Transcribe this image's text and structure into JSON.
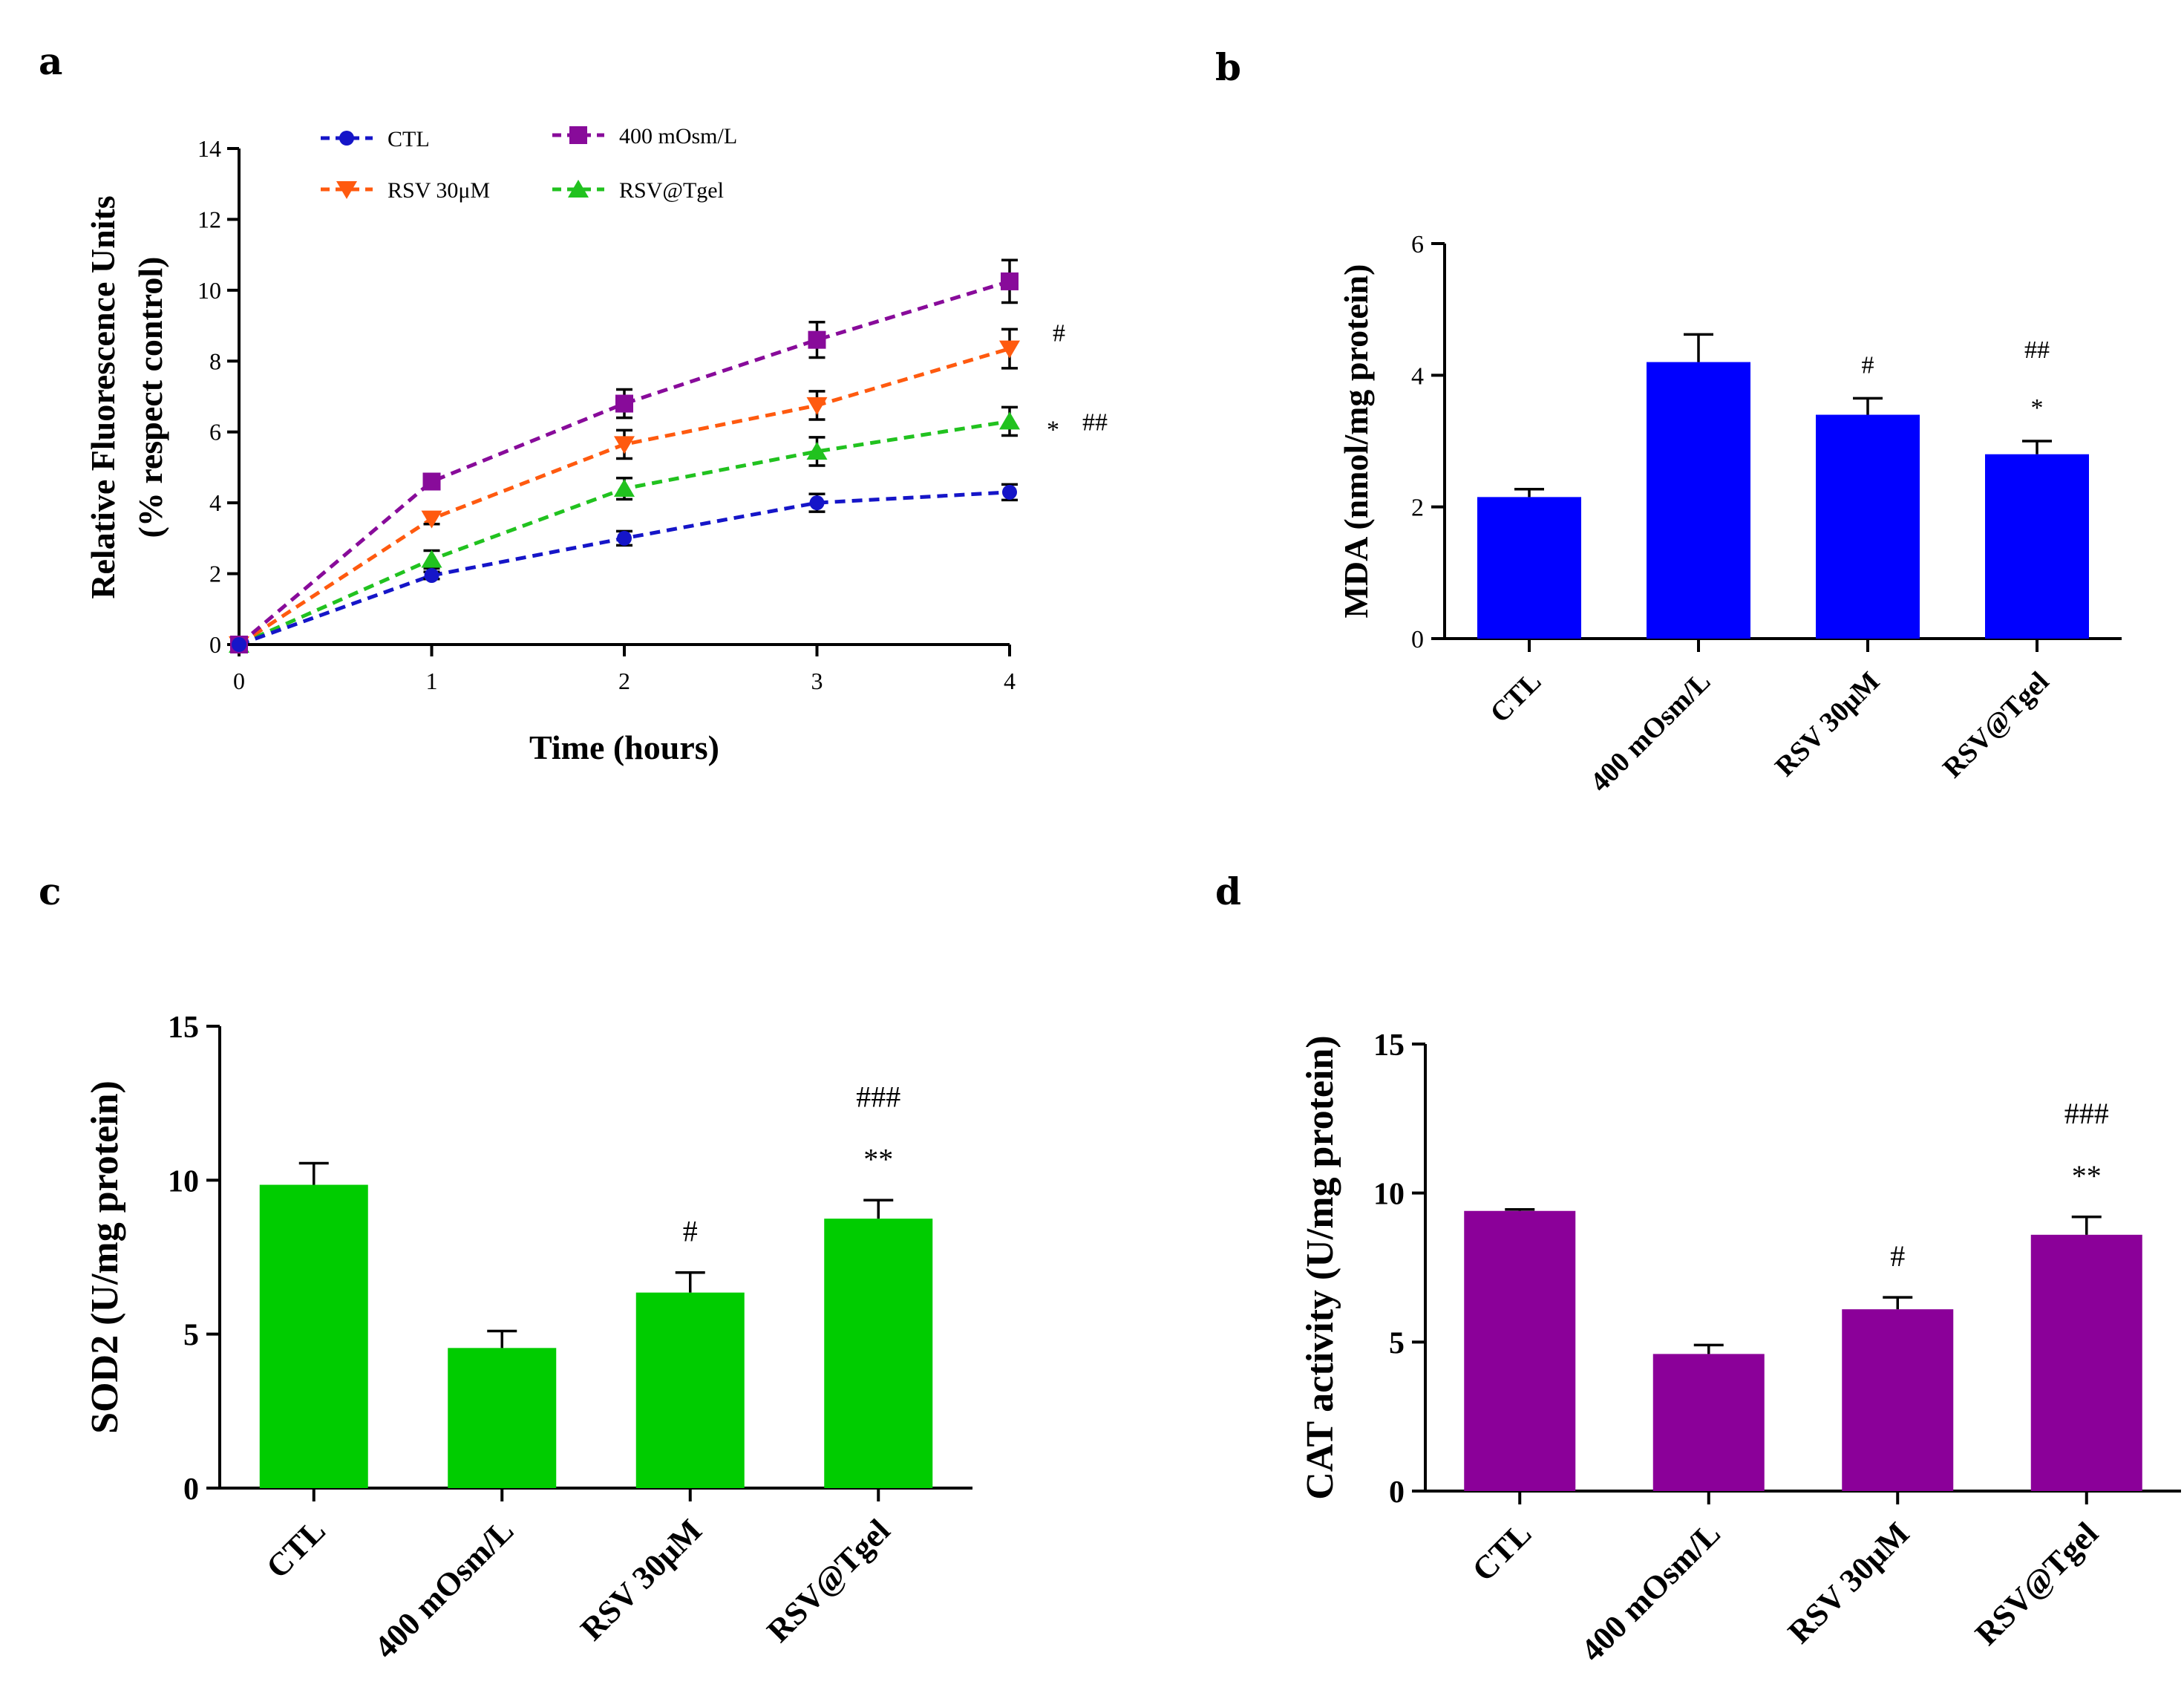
{
  "figure": {
    "panels": [
      "a",
      "b",
      "c",
      "d"
    ]
  },
  "chart_data": [
    {
      "panel": "a",
      "type": "line",
      "title": "",
      "xlabel": "Time (hours)",
      "ylabel_line1": "Relative Fluorescence Units",
      "ylabel_line2": "(% respect control)",
      "x": [
        0,
        1,
        2,
        3,
        4
      ],
      "x_ticks": [
        "0",
        "1",
        "2",
        "3",
        "4"
      ],
      "y_ticks": [
        "0",
        "2",
        "4",
        "6",
        "8",
        "10",
        "12",
        "14"
      ],
      "xlim": [
        0,
        4
      ],
      "ylim": [
        0,
        14
      ],
      "legend_position": "top",
      "series": [
        {
          "name": "CTL",
          "color": "#1515c8",
          "marker": "circle",
          "values": [
            0,
            1.95,
            3.0,
            4.0,
            4.3
          ],
          "errors": [
            0,
            0.1,
            0.2,
            0.25,
            0.22
          ]
        },
        {
          "name": "400 mOsm/L",
          "color": "#880b9a",
          "marker": "square",
          "values": [
            0,
            4.6,
            6.8,
            8.6,
            10.25
          ],
          "errors": [
            0,
            0.12,
            0.4,
            0.5,
            0.6
          ]
        },
        {
          "name": "RSV 30μM",
          "color": "#ff5a0f",
          "marker": "triangle-down",
          "values": [
            0,
            3.55,
            5.65,
            6.75,
            8.35
          ],
          "errors": [
            0,
            0.15,
            0.4,
            0.4,
            0.55
          ]
        },
        {
          "name": "RSV@Tgel",
          "color": "#21c21f",
          "marker": "triangle-up",
          "values": [
            0,
            2.4,
            4.4,
            5.45,
            6.3
          ],
          "errors": [
            0,
            0.25,
            0.3,
            0.4,
            0.4
          ]
        }
      ],
      "annotations": [
        {
          "text": "#",
          "series": "RSV 30μM"
        },
        {
          "text": "*",
          "series": "RSV@Tgel"
        },
        {
          "text": "##",
          "series": "RSV@Tgel"
        }
      ]
    },
    {
      "panel": "b",
      "type": "bar",
      "ylabel": "MDA (nmol/mg protein)",
      "categories": [
        "CTL",
        "400 mOsm/L",
        "RSV 30μM",
        "RSV@Tgel"
      ],
      "values": [
        2.15,
        4.2,
        3.4,
        2.8
      ],
      "errors": [
        0.12,
        0.42,
        0.25,
        0.2
      ],
      "y_ticks": [
        "0",
        "2",
        "4",
        "6"
      ],
      "ylim": [
        0,
        6
      ],
      "color": "#0000ff",
      "annotations": [
        [],
        [],
        [
          "#"
        ],
        [
          "##",
          "*"
        ]
      ]
    },
    {
      "panel": "c",
      "type": "bar",
      "ylabel": "SOD2 (U/mg protein)",
      "categories": [
        "CTL",
        "400 mOsm/L",
        "RSV 30μM",
        "RSV@Tgel"
      ],
      "values": [
        9.85,
        4.55,
        6.35,
        8.75
      ],
      "errors": [
        0.7,
        0.55,
        0.65,
        0.6
      ],
      "y_ticks": [
        "0",
        "5",
        "10",
        "15"
      ],
      "ylim": [
        0,
        15
      ],
      "color": "#00cc00",
      "annotations": [
        [],
        [],
        [
          "#"
        ],
        [
          "###",
          "**"
        ]
      ]
    },
    {
      "panel": "d",
      "type": "bar",
      "ylabel": "CAT activity (U/mg protein)",
      "categories": [
        "CTL",
        "400 mOsm/L",
        "RSV 30μM",
        "RSV@Tgel"
      ],
      "values": [
        9.4,
        4.6,
        6.1,
        8.6
      ],
      "errors": [
        0.05,
        0.3,
        0.4,
        0.6
      ],
      "y_ticks": [
        "0",
        "5",
        "10",
        "15"
      ],
      "ylim": [
        0,
        15
      ],
      "color": "#8b0099",
      "annotations": [
        [],
        [],
        [
          "#"
        ],
        [
          "###",
          "**"
        ]
      ]
    }
  ]
}
